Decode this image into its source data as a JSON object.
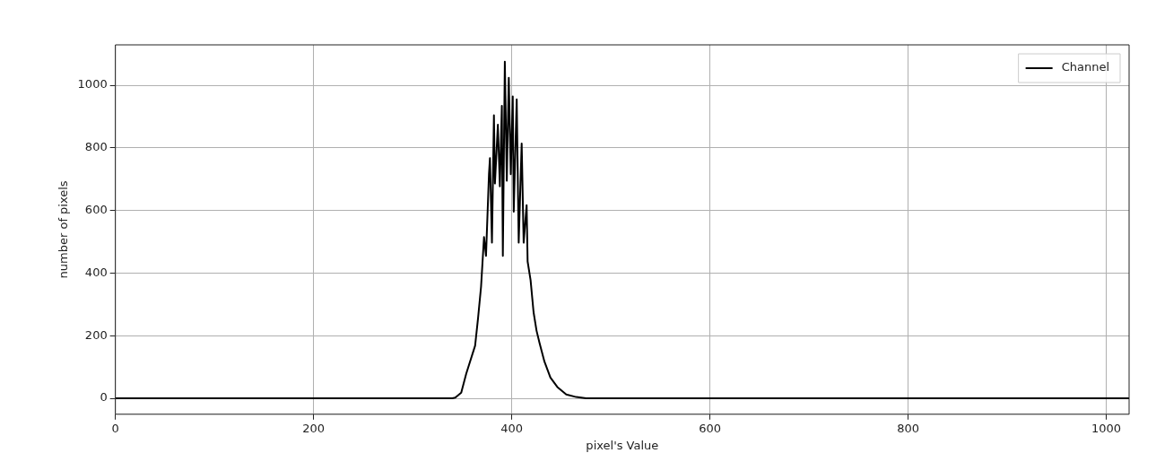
{
  "chart_data": {
    "type": "line",
    "xlabel": "pixel's Value",
    "ylabel": "number of pixels",
    "series": [
      {
        "name": "Channel",
        "color": "#000000",
        "x": [
          0,
          340,
          343,
          349,
          354,
          363,
          366,
          369,
          372,
          374,
          377,
          378,
          380,
          382,
          383,
          386,
          388,
          390,
          391,
          393,
          395,
          397,
          399,
          401,
          402,
          405,
          407,
          410,
          412,
          415,
          416,
          419,
          422,
          425,
          428,
          433,
          439,
          446,
          455,
          465,
          475,
          1023
        ],
        "values": [
          0,
          0,
          2,
          18,
          78,
          168,
          257,
          356,
          515,
          455,
          716,
          767,
          497,
          904,
          686,
          874,
          677,
          934,
          455,
          1075,
          695,
          1024,
          716,
          964,
          596,
          955,
          497,
          814,
          497,
          617,
          437,
          377,
          275,
          216,
          177,
          117,
          66,
          36,
          12,
          4,
          0,
          0
        ]
      }
    ],
    "xlim": [
      0,
      1023
    ],
    "xticks": [
      0,
      200,
      400,
      600,
      800,
      1000
    ],
    "ylim": [
      -51,
      1129
    ],
    "yticks": [
      0,
      200,
      400,
      600,
      800,
      1000
    ],
    "grid": true,
    "legend": "top right",
    "marker": "none",
    "line_style": "solid"
  }
}
